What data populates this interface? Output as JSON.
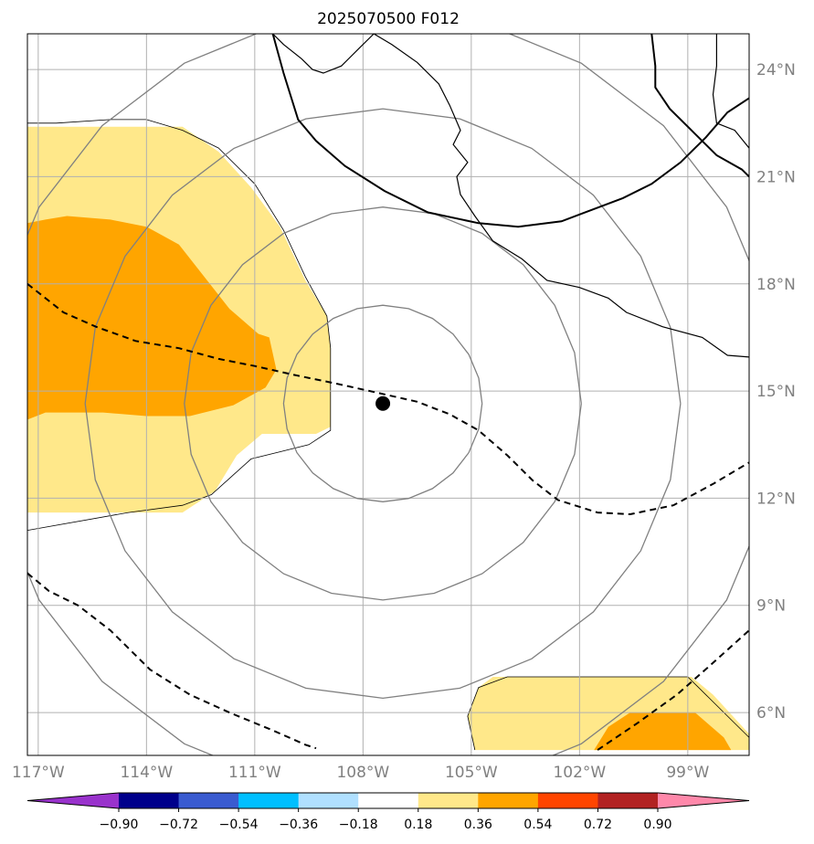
{
  "chart_data": {
    "type": "map",
    "title": "2025070500 F012",
    "extent": {
      "lon": [
        -117.3,
        -97.3
      ],
      "lat": [
        4.8,
        25
      ]
    },
    "x_ticks": [
      {
        "value": -117,
        "label": "117°W"
      },
      {
        "value": -114,
        "label": "114°W"
      },
      {
        "value": -111,
        "label": "111°W"
      },
      {
        "value": -108,
        "label": "108°W"
      },
      {
        "value": -105,
        "label": "105°W"
      },
      {
        "value": -102,
        "label": "102°W"
      },
      {
        "value": -99,
        "label": "99°W"
      }
    ],
    "y_ticks": [
      {
        "value": 6,
        "label": "6°N"
      },
      {
        "value": 9,
        "label": "9°N"
      },
      {
        "value": 12,
        "label": "12°N"
      },
      {
        "value": 15,
        "label": "15°N"
      },
      {
        "value": 18,
        "label": "18°N"
      },
      {
        "value": 21,
        "label": "21°N"
      },
      {
        "value": 24,
        "label": "24°N"
      }
    ],
    "grid": true,
    "storm_center": {
      "lon": -107.45,
      "lat": 14.65
    },
    "range_ring_radii_deg": [
      2.75,
      5.5,
      8.25,
      11.0
    ],
    "colorbar": {
      "levels": [
        -0.9,
        -0.72,
        -0.54,
        -0.36,
        -0.18,
        0.18,
        0.36,
        0.54,
        0.72,
        0.9
      ],
      "tick_labels": [
        "−0.90",
        "−0.72",
        "−0.54",
        "−0.36",
        "−0.18",
        "0.18",
        "0.36",
        "0.54",
        "0.72",
        "0.90"
      ],
      "colors": [
        "#9932cc",
        "#00008b",
        "#3a5bd0",
        "#00bfff",
        "#b0e0ff",
        "#ffffff",
        "#ffe88a",
        "#ffa500",
        "#ff4500",
        "#b22222",
        "#ff88aa"
      ],
      "extend": "both"
    },
    "shaded_regions": [
      {
        "level": 0.18,
        "color": "#ffe88a",
        "polygon": [
          [
            -117.3,
            22.4
          ],
          [
            -113.0,
            22.4
          ],
          [
            -112.0,
            21.7
          ],
          [
            -111.1,
            20.7
          ],
          [
            -110.3,
            19.6
          ],
          [
            -109.6,
            18.1
          ],
          [
            -109.0,
            17.1
          ],
          [
            -108.9,
            16.3
          ],
          [
            -108.9,
            14.0
          ],
          [
            -109.3,
            13.8
          ],
          [
            -110.8,
            13.8
          ],
          [
            -111.5,
            13.2
          ],
          [
            -112.1,
            12.2
          ],
          [
            -113.0,
            11.6
          ],
          [
            -117.3,
            11.6
          ]
        ]
      },
      {
        "level": 0.36,
        "color": "#ffa500",
        "polygon": [
          [
            -117.3,
            19.7
          ],
          [
            -116.8,
            19.8
          ],
          [
            -116.2,
            19.9
          ],
          [
            -115.0,
            19.8
          ],
          [
            -114.0,
            19.6
          ],
          [
            -113.1,
            19.1
          ],
          [
            -112.4,
            18.2
          ],
          [
            -111.7,
            17.3
          ],
          [
            -110.9,
            16.6
          ],
          [
            -110.6,
            16.5
          ],
          [
            -110.4,
            15.6
          ],
          [
            -110.7,
            15.1
          ],
          [
            -111.6,
            14.6
          ],
          [
            -112.8,
            14.3
          ],
          [
            -114.0,
            14.3
          ],
          [
            -115.2,
            14.4
          ],
          [
            -116.8,
            14.4
          ],
          [
            -117.3,
            14.2
          ]
        ]
      },
      {
        "level": 0.18,
        "color": "#ffe88a",
        "polygon": [
          [
            -104.9,
            4.95
          ],
          [
            -105.1,
            5.9
          ],
          [
            -104.8,
            6.7
          ],
          [
            -104.4,
            7.0
          ],
          [
            -101.5,
            7.0
          ],
          [
            -98.9,
            7.0
          ],
          [
            -98.3,
            6.5
          ],
          [
            -97.3,
            5.4
          ],
          [
            -97.3,
            4.95
          ]
        ]
      },
      {
        "level": 0.36,
        "color": "#ffa500",
        "polygon": [
          [
            -101.6,
            4.95
          ],
          [
            -101.2,
            5.6
          ],
          [
            -100.6,
            6.0
          ],
          [
            -98.8,
            6.0
          ],
          [
            -98.0,
            5.3
          ],
          [
            -97.8,
            4.95
          ]
        ]
      }
    ],
    "thick_contour": [
      [
        -110.5,
        25.0
      ],
      [
        -110.2,
        23.9
      ],
      [
        -109.8,
        22.6
      ],
      [
        -109.3,
        22.0
      ],
      [
        -108.5,
        21.3
      ],
      [
        -107.4,
        20.6
      ],
      [
        -106.2,
        20.0
      ],
      [
        -104.8,
        19.7
      ],
      [
        -103.7,
        19.6
      ],
      [
        -102.5,
        19.75
      ],
      [
        -100.8,
        20.4
      ],
      [
        -100.0,
        20.8
      ],
      [
        -99.2,
        21.4
      ],
      [
        -98.5,
        22.1
      ],
      [
        -97.9,
        22.8
      ],
      [
        -97.3,
        23.2
      ]
    ],
    "thick_contour_2": [
      [
        -100.0,
        25.0
      ],
      [
        -99.9,
        24.1
      ],
      [
        -99.9,
        23.5
      ],
      [
        -99.5,
        22.9
      ],
      [
        -98.9,
        22.3
      ],
      [
        -98.2,
        21.6
      ],
      [
        -97.5,
        21.2
      ],
      [
        -97.3,
        21.0
      ]
    ],
    "dashed_lines": [
      [
        [
          -117.3,
          18.0
        ],
        [
          -116.3,
          17.2
        ],
        [
          -115.4,
          16.8
        ],
        [
          -114.3,
          16.4
        ],
        [
          -113.1,
          16.2
        ],
        [
          -112.0,
          15.9
        ],
        [
          -111.0,
          15.7
        ],
        [
          -109.9,
          15.45
        ],
        [
          -108.7,
          15.2
        ],
        [
          -107.6,
          14.95
        ],
        [
          -106.5,
          14.7
        ],
        [
          -105.6,
          14.35
        ],
        [
          -104.8,
          13.9
        ],
        [
          -104.0,
          13.2
        ],
        [
          -103.3,
          12.5
        ],
        [
          -102.6,
          11.95
        ],
        [
          -101.5,
          11.6
        ],
        [
          -100.6,
          11.55
        ],
        [
          -99.4,
          11.8
        ],
        [
          -98.3,
          12.4
        ],
        [
          -97.3,
          13.0
        ]
      ],
      [
        [
          -117.3,
          9.9
        ],
        [
          -116.7,
          9.4
        ],
        [
          -115.9,
          9.0
        ],
        [
          -115.0,
          8.3
        ],
        [
          -113.9,
          7.2
        ],
        [
          -112.8,
          6.5
        ],
        [
          -111.7,
          6.0
        ],
        [
          -110.5,
          5.5
        ],
        [
          -109.6,
          5.1
        ],
        [
          -109.3,
          5.0
        ]
      ],
      [
        [
          -101.5,
          4.95
        ],
        [
          -100.4,
          5.7
        ],
        [
          -99.3,
          6.5
        ],
        [
          -98.4,
          7.3
        ],
        [
          -97.3,
          8.3
        ]
      ]
    ],
    "coastline": [
      [
        -97.3,
        21.8
      ],
      [
        -97.7,
        22.3
      ],
      [
        -98.2,
        22.5
      ],
      [
        -98.3,
        23.3
      ],
      [
        -98.2,
        24.1
      ],
      [
        -98.2,
        25.0
      ]
    ],
    "coastline_mexico_pacific": [
      [
        -110.5,
        25.0
      ],
      [
        -110.2,
        24.7
      ],
      [
        -109.7,
        24.3
      ],
      [
        -109.4,
        24.0
      ],
      [
        -109.1,
        23.9
      ],
      [
        -108.6,
        24.1
      ],
      [
        -108.1,
        24.6
      ],
      [
        -107.7,
        25.0
      ],
      [
        -107.2,
        24.7
      ],
      [
        -106.5,
        24.2
      ],
      [
        -105.9,
        23.6
      ],
      [
        -105.6,
        23.0
      ],
      [
        -105.3,
        22.3
      ],
      [
        -105.5,
        21.9
      ],
      [
        -105.1,
        21.4
      ],
      [
        -105.4,
        21.0
      ],
      [
        -105.3,
        20.5
      ],
      [
        -104.9,
        19.9
      ],
      [
        -104.4,
        19.2
      ],
      [
        -103.6,
        18.7
      ],
      [
        -102.9,
        18.1
      ],
      [
        -102.0,
        17.9
      ],
      [
        -101.2,
        17.6
      ],
      [
        -100.7,
        17.2
      ],
      [
        -99.7,
        16.8
      ],
      [
        -98.6,
        16.5
      ],
      [
        -97.9,
        16.0
      ],
      [
        -97.3,
        15.95
      ]
    ],
    "thin_black_lines": [
      [
        [
          -117.3,
          22.5
        ],
        [
          -116.5,
          22.5
        ],
        [
          -115.0,
          22.6
        ],
        [
          -114.0,
          22.6
        ],
        [
          -113.0,
          22.3
        ],
        [
          -112.0,
          21.8
        ],
        [
          -111.0,
          20.8
        ],
        [
          -110.2,
          19.5
        ],
        [
          -109.6,
          18.2
        ],
        [
          -109.0,
          17.1
        ],
        [
          -108.9,
          16.2
        ],
        [
          -108.9,
          13.9
        ],
        [
          -109.5,
          13.5
        ],
        [
          -110.3,
          13.3
        ],
        [
          -111.1,
          13.1
        ],
        [
          -112.2,
          12.1
        ],
        [
          -113.0,
          11.8
        ],
        [
          -114.5,
          11.6
        ],
        [
          -117.3,
          11.1
        ]
      ],
      [
        [
          -104.9,
          4.95
        ],
        [
          -105.1,
          5.9
        ],
        [
          -104.8,
          6.7
        ],
        [
          -104.0,
          7.0
        ],
        [
          -101.5,
          7.0
        ],
        [
          -99.0,
          7.0
        ],
        [
          -98.4,
          6.4
        ],
        [
          -97.3,
          5.3
        ]
      ]
    ]
  }
}
